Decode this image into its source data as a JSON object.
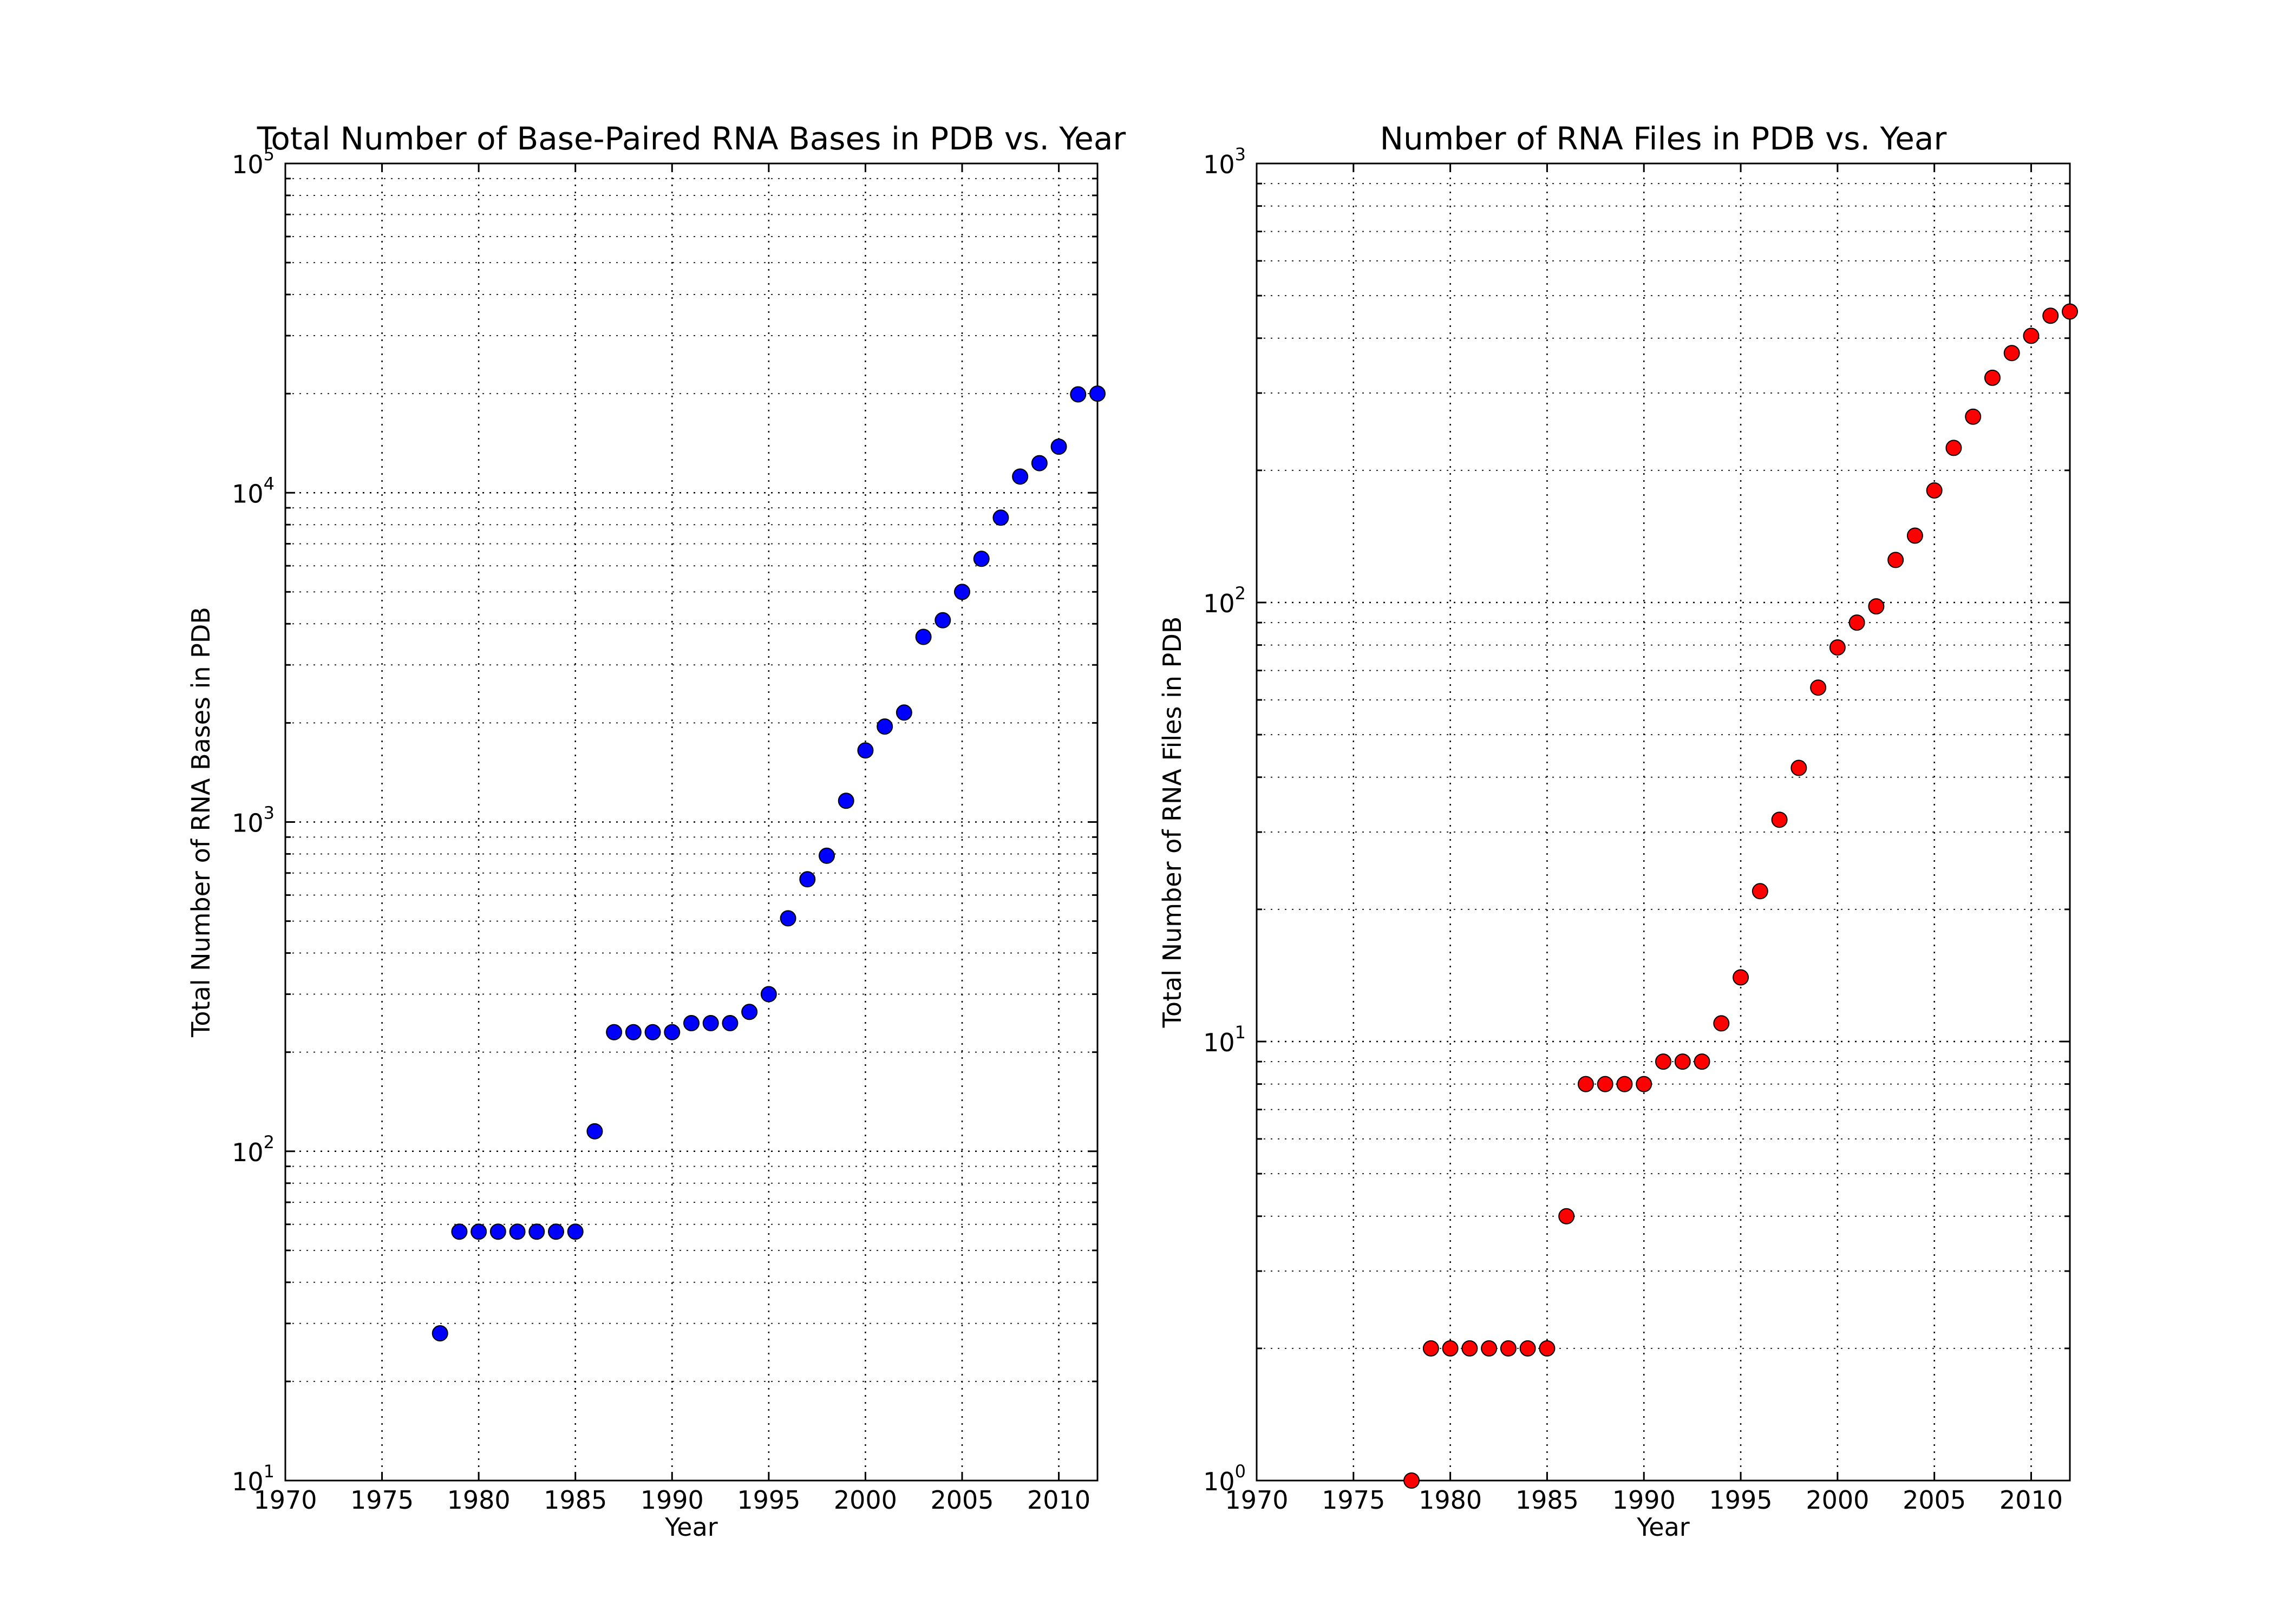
{
  "figure": {
    "background": "#ffffff"
  },
  "chart_data": [
    {
      "type": "scatter",
      "title": "Total Number of Base-Paired RNA Bases in PDB vs. Year",
      "xlabel": "Year",
      "ylabel": "Total Number of RNA Bases in PDB",
      "xlim": [
        1970,
        2012
      ],
      "ylim": [
        10,
        100000
      ],
      "yscale": "log",
      "grid": true,
      "legend": "none",
      "marker_color": "#0000ff",
      "x_ticks": [
        1970,
        1975,
        1980,
        1985,
        1990,
        1995,
        2000,
        2005,
        2010
      ],
      "x_tick_labels": [
        "1970",
        "1975",
        "1980",
        "1985",
        "1990",
        "1995",
        "2000",
        "2005",
        "2010"
      ],
      "y_ticks": [
        10,
        100,
        1000,
        10000,
        100000
      ],
      "y_tick_labels": [
        {
          "base": "10",
          "exp": "1"
        },
        {
          "base": "10",
          "exp": "2"
        },
        {
          "base": "10",
          "exp": "3"
        },
        {
          "base": "10",
          "exp": "4"
        },
        {
          "base": "10",
          "exp": "5"
        }
      ],
      "x": [
        1978,
        1979,
        1980,
        1981,
        1982,
        1983,
        1984,
        1985,
        1986,
        1987,
        1988,
        1989,
        1990,
        1991,
        1992,
        1993,
        1994,
        1995,
        1996,
        1997,
        1998,
        1999,
        2000,
        2001,
        2002,
        2003,
        2004,
        2005,
        2006,
        2007,
        2008,
        2009,
        2010,
        2011,
        2012
      ],
      "y": [
        28,
        57,
        57,
        57,
        57,
        57,
        57,
        57,
        115,
        230,
        230,
        230,
        230,
        245,
        245,
        245,
        265,
        300,
        510,
        670,
        790,
        1160,
        1650,
        1950,
        2150,
        3650,
        4100,
        5000,
        6300,
        8400,
        11200,
        12300,
        13800,
        19900,
        20000
      ]
    },
    {
      "type": "scatter",
      "title": "Number of RNA Files in PDB vs. Year",
      "xlabel": "Year",
      "ylabel": "Total Number of RNA Files in PDB",
      "xlim": [
        1970,
        2012
      ],
      "ylim": [
        1,
        1000
      ],
      "yscale": "log",
      "grid": true,
      "legend": "none",
      "marker_color": "#ff0000",
      "x_ticks": [
        1970,
        1975,
        1980,
        1985,
        1990,
        1995,
        2000,
        2005,
        2010
      ],
      "x_tick_labels": [
        "1970",
        "1975",
        "1980",
        "1985",
        "1990",
        "1995",
        "2000",
        "2005",
        "2010"
      ],
      "y_ticks": [
        1,
        10,
        100,
        1000
      ],
      "y_tick_labels": [
        {
          "base": "10",
          "exp": "0"
        },
        {
          "base": "10",
          "exp": "1"
        },
        {
          "base": "10",
          "exp": "2"
        },
        {
          "base": "10",
          "exp": "3"
        }
      ],
      "x": [
        1978,
        1979,
        1980,
        1981,
        1982,
        1983,
        1984,
        1985,
        1986,
        1987,
        1988,
        1989,
        1990,
        1991,
        1992,
        1993,
        1994,
        1995,
        1996,
        1997,
        1998,
        1999,
        2000,
        2001,
        2002,
        2003,
        2004,
        2005,
        2006,
        2007,
        2008,
        2009,
        2010,
        2011,
        2012
      ],
      "y": [
        1,
        2,
        2,
        2,
        2,
        2,
        2,
        2,
        4,
        8,
        8,
        8,
        8,
        9,
        9,
        9,
        11,
        14,
        22,
        32,
        42,
        64,
        79,
        90,
        98,
        125,
        142,
        180,
        225,
        265,
        325,
        370,
        405,
        450,
        460
      ]
    }
  ]
}
